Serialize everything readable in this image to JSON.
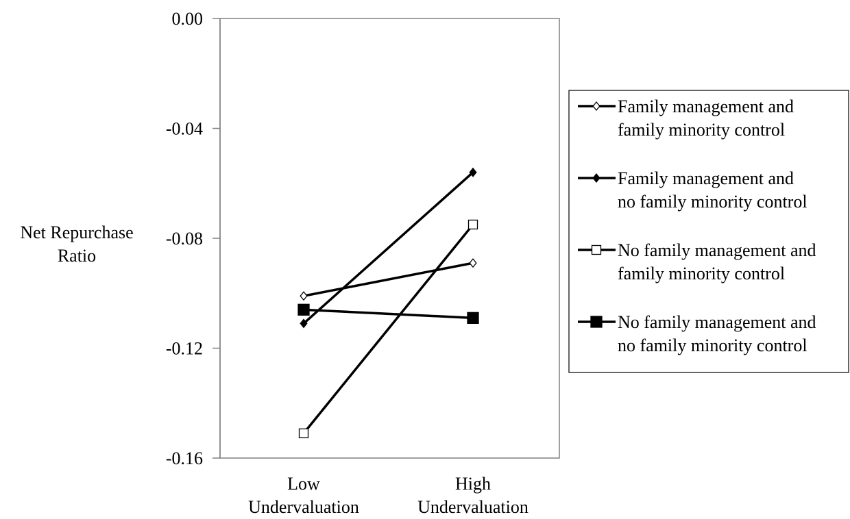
{
  "chart_data": {
    "type": "line",
    "title": "",
    "ylabel": [
      "Net Repurchase",
      "Ratio"
    ],
    "categories": [
      [
        "Low",
        "Undervaluation"
      ],
      [
        "High",
        "Undervaluation"
      ]
    ],
    "ylim": [
      -0.16,
      0.0
    ],
    "yticks": [
      "0.00",
      "-0.04",
      "-0.08",
      "-0.12",
      "-0.16"
    ],
    "ytick_values": [
      0.0,
      -0.04,
      -0.08,
      -0.12,
      -0.16
    ],
    "grid": false,
    "legend_position": "right",
    "series": [
      {
        "name": [
          "Family management and",
          "family minority control"
        ],
        "marker": "diamond-open",
        "values": [
          -0.101,
          -0.089
        ]
      },
      {
        "name": [
          "Family management and",
          "no family minority control"
        ],
        "marker": "diamond-filled",
        "values": [
          -0.111,
          -0.056
        ]
      },
      {
        "name": [
          "No family management and",
          "family minority control"
        ],
        "marker": "square-open",
        "values": [
          -0.151,
          -0.075
        ]
      },
      {
        "name": [
          "No family management and",
          "no family minority control"
        ],
        "marker": "square-filled",
        "values": [
          -0.106,
          -0.109
        ]
      }
    ]
  }
}
